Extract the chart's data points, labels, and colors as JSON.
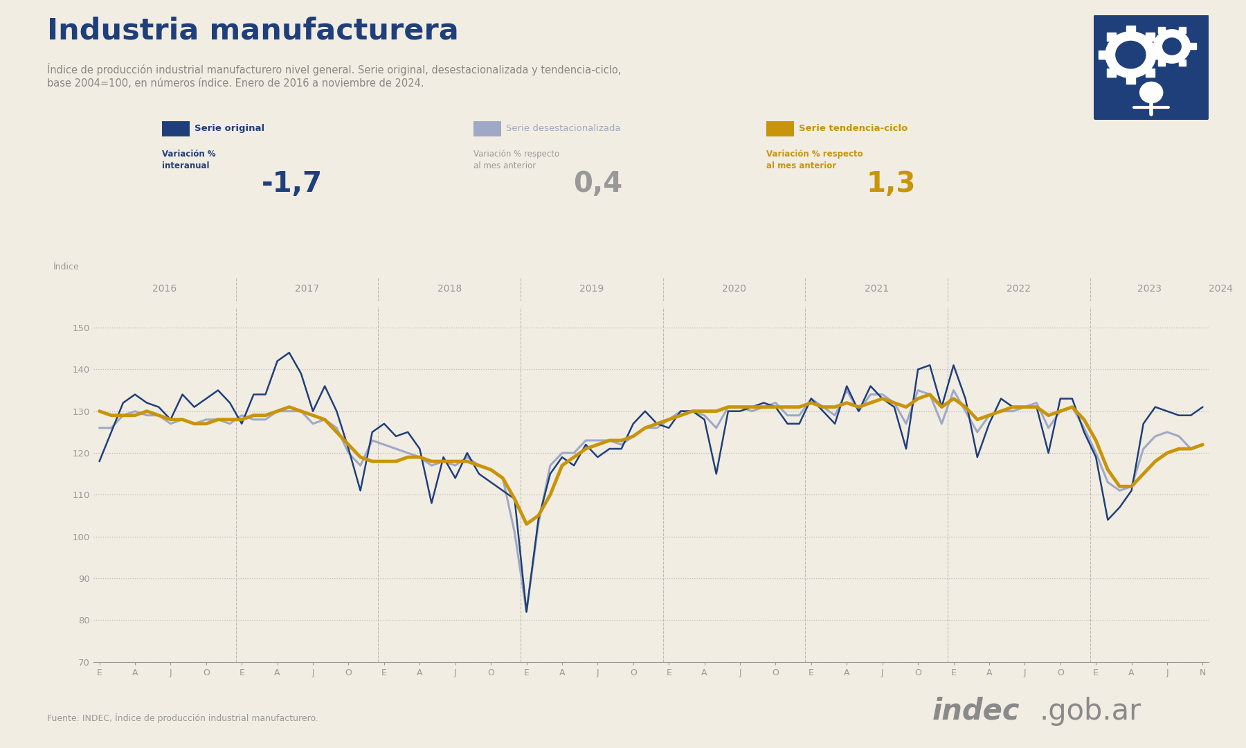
{
  "title": "Industria manufacturera",
  "subtitle_line1": "Índice de producción industrial manufacturero nivel general. Serie original, desestacionalizada y tendencia-ciclo,",
  "subtitle_line2": "base 2004=100, en números índice. Enero de 2016 a noviembre de 2024.",
  "source": "Fuente: INDEC, Índice de producción industrial manufacturero.",
  "legend_original": "Serie original",
  "legend_desest": "Serie desestacionalizada",
  "legend_tend": "Serie tendencia-ciclo",
  "stat_label1": "Variación %\ninteranual",
  "stat_value1": "-1,7",
  "stat_label2": "Variación % respecto\nal mes anterior",
  "stat_value2": "0,4",
  "stat_label3": "Variación % respecto\nal mes anterior",
  "stat_value3": "1,3",
  "ylabel": "Índice",
  "color_bg": "#f2ede2",
  "color_title": "#1e3f7a",
  "color_subtitle": "#888888",
  "color_original": "#1e3f7a",
  "color_desest": "#a0a8c8",
  "color_tend": "#c8940a",
  "color_grid": "#bbbbbb",
  "color_axis": "#999999",
  "color_source": "#999999",
  "color_stat1": "#1e3f7a",
  "color_stat2": "#999999",
  "color_stat3": "#c8940a",
  "ylim_min": 70,
  "ylim_max": 155,
  "yticks": [
    70,
    80,
    90,
    100,
    110,
    120,
    130,
    140,
    150
  ],
  "year_labels": [
    "2016",
    "2017",
    "2018",
    "2019",
    "2020",
    "2021",
    "2022",
    "2023",
    "2024"
  ],
  "serie_original": [
    118,
    125,
    132,
    134,
    132,
    131,
    128,
    134,
    131,
    133,
    135,
    132,
    127,
    134,
    134,
    142,
    144,
    139,
    130,
    136,
    130,
    121,
    111,
    125,
    127,
    124,
    125,
    121,
    108,
    119,
    114,
    120,
    115,
    113,
    111,
    109,
    82,
    104,
    115,
    119,
    117,
    122,
    119,
    121,
    121,
    127,
    130,
    127,
    126,
    130,
    130,
    128,
    115,
    130,
    130,
    131,
    132,
    131,
    127,
    127,
    133,
    130,
    127,
    136,
    130,
    136,
    133,
    131,
    121,
    140,
    141,
    131,
    141,
    133,
    119,
    127,
    133,
    131,
    131,
    131,
    120,
    133,
    133,
    125,
    119,
    104,
    107,
    111,
    127,
    131,
    130,
    129,
    129,
    131
  ],
  "serie_desestacionalizada": [
    126,
    126,
    129,
    130,
    129,
    129,
    127,
    128,
    127,
    128,
    128,
    127,
    129,
    128,
    128,
    130,
    130,
    130,
    127,
    128,
    126,
    120,
    117,
    123,
    122,
    121,
    120,
    119,
    117,
    118,
    117,
    119,
    117,
    116,
    114,
    101,
    82,
    103,
    117,
    120,
    120,
    123,
    123,
    123,
    122,
    124,
    126,
    126,
    128,
    130,
    130,
    129,
    126,
    131,
    131,
    130,
    131,
    132,
    129,
    129,
    133,
    131,
    129,
    135,
    130,
    134,
    134,
    132,
    127,
    135,
    134,
    127,
    135,
    130,
    125,
    129,
    130,
    130,
    131,
    132,
    126,
    130,
    131,
    126,
    120,
    113,
    111,
    112,
    121,
    124,
    125,
    124,
    121,
    122
  ],
  "serie_tendencia": [
    130,
    129,
    129,
    129,
    130,
    129,
    128,
    128,
    127,
    127,
    128,
    128,
    128,
    129,
    129,
    130,
    131,
    130,
    129,
    128,
    125,
    122,
    119,
    118,
    118,
    118,
    119,
    119,
    118,
    118,
    118,
    118,
    117,
    116,
    114,
    109,
    103,
    105,
    110,
    117,
    119,
    121,
    122,
    123,
    123,
    124,
    126,
    127,
    128,
    129,
    130,
    130,
    130,
    131,
    131,
    131,
    131,
    131,
    131,
    131,
    132,
    131,
    131,
    132,
    131,
    132,
    133,
    132,
    131,
    133,
    134,
    131,
    133,
    131,
    128,
    129,
    130,
    131,
    131,
    131,
    129,
    130,
    131,
    128,
    123,
    116,
    112,
    112,
    115,
    118,
    120,
    121,
    121,
    122
  ]
}
